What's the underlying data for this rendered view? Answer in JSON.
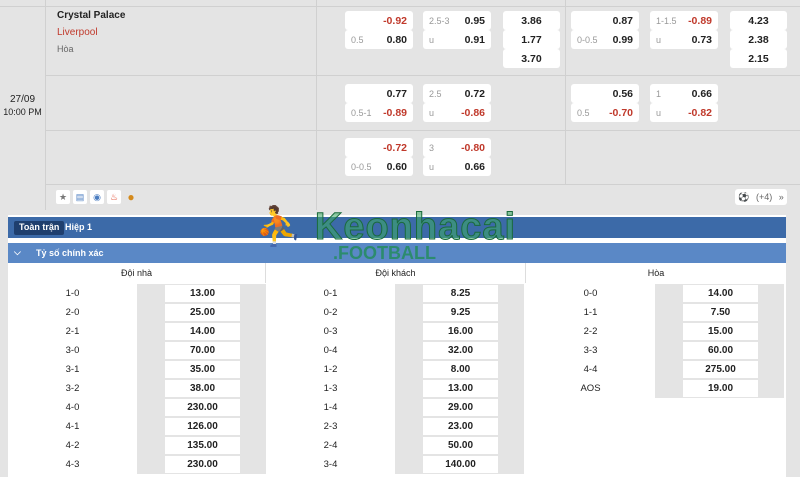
{
  "match": {
    "date": "27/09",
    "time": "10:00 PM",
    "home": "Crystal Palace",
    "away": "Liverpool",
    "draw": "Hòa",
    "more": "(+4)"
  },
  "odds_ft": [
    {
      "hdp": {
        "top": "-0.92",
        "bot_label": "0.5",
        "bot": "0.80"
      },
      "ou": {
        "top_label": "2.5-3",
        "top": "0.95",
        "bot_label": "u",
        "bot": "0.91"
      },
      "x12": [
        "3.86",
        "1.77",
        "3.70"
      ]
    },
    {
      "hdp": {
        "top": "0.77",
        "bot_label": "0.5-1",
        "bot": "-0.89"
      },
      "ou": {
        "top_label": "2.5",
        "top": "0.72",
        "bot_label": "u",
        "bot": "-0.86"
      }
    },
    {
      "hdp": {
        "top": "-0.72",
        "bot_label": "0-0.5",
        "bot": "0.60"
      },
      "ou": {
        "top_label": "3",
        "top": "-0.80",
        "bot_label": "u",
        "bot": "0.66"
      }
    }
  ],
  "odds_h1": [
    {
      "hdp": {
        "top": "0.87",
        "bot_label": "0-0.5",
        "bot": "0.99"
      },
      "ou": {
        "top_label": "1-1.5",
        "top": "-0.89",
        "bot_label": "u",
        "bot": "0.73"
      },
      "x12": [
        "4.23",
        "2.38",
        "2.15"
      ]
    },
    {
      "hdp": {
        "top": "0.56",
        "bot_label": "0.5",
        "bot": "-0.70"
      },
      "ou": {
        "top_label": "1",
        "top": "0.66",
        "bot_label": "u",
        "bot": "-0.82"
      }
    }
  ],
  "tabs": [
    "Toàn trận",
    "Hiệp 1"
  ],
  "section": "Tỷ số chính xác",
  "columns": [
    "Đội nhà",
    "Đội khách",
    "Hòa"
  ],
  "home": [
    [
      "1-0",
      "13.00"
    ],
    [
      "2-0",
      "25.00"
    ],
    [
      "2-1",
      "14.00"
    ],
    [
      "3-0",
      "70.00"
    ],
    [
      "3-1",
      "35.00"
    ],
    [
      "3-2",
      "38.00"
    ],
    [
      "4-0",
      "230.00"
    ],
    [
      "4-1",
      "126.00"
    ],
    [
      "4-2",
      "135.00"
    ],
    [
      "4-3",
      "230.00"
    ]
  ],
  "away": [
    [
      "0-1",
      "8.25"
    ],
    [
      "0-2",
      "9.25"
    ],
    [
      "0-3",
      "16.00"
    ],
    [
      "0-4",
      "32.00"
    ],
    [
      "1-2",
      "8.00"
    ],
    [
      "1-3",
      "13.00"
    ],
    [
      "1-4",
      "29.00"
    ],
    [
      "2-3",
      "23.00"
    ],
    [
      "2-4",
      "50.00"
    ],
    [
      "3-4",
      "140.00"
    ]
  ],
  "draw": [
    [
      "0-0",
      "14.00"
    ],
    [
      "1-1",
      "7.50"
    ],
    [
      "2-2",
      "15.00"
    ],
    [
      "3-3",
      "60.00"
    ],
    [
      "4-4",
      "275.00"
    ],
    [
      "AOS",
      "19.00"
    ]
  ],
  "watermark": "Keonhacai .FOOTBALL",
  "colors": {
    "tabbar": "#3c6aa8",
    "subheader": "#5a88c6",
    "negative": "#c0392b"
  }
}
